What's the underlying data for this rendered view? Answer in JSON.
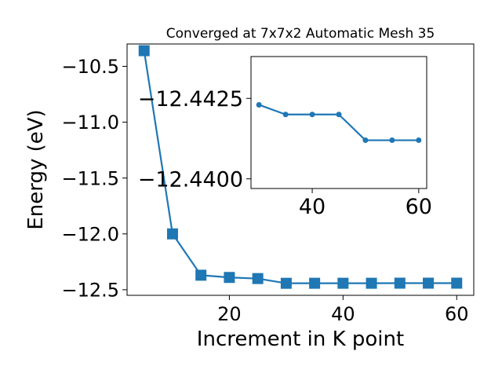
{
  "chart_data": [
    {
      "type": "line",
      "title": "Converged at 7x7x2 Automatic Mesh 35",
      "xlabel": "Increment in K point",
      "ylabel": "Energy (eV)",
      "xlim": [
        2,
        63
      ],
      "ylim": [
        -12.55,
        -10.3
      ],
      "x_ticks": [
        20,
        40,
        60
      ],
      "y_ticks": [
        -10.5,
        -11.0,
        -11.5,
        -12.0,
        -12.5
      ],
      "x_tick_labels": [
        "20",
        "40",
        "60"
      ],
      "y_tick_labels": [
        "−10.5",
        "−11.0",
        "−11.5",
        "−12.0",
        "−12.5"
      ],
      "grid": false,
      "series": [
        {
          "marker": "square",
          "color": "#1f77b4",
          "x": [
            5,
            10,
            15,
            20,
            25,
            30,
            35,
            40,
            45,
            50,
            55,
            60
          ],
          "y": [
            -10.36,
            -12.0,
            -12.37,
            -12.39,
            -12.4,
            -12.4423,
            -12.442,
            -12.442,
            -12.442,
            -12.4412,
            -12.4412,
            -12.4412
          ]
        }
      ]
    },
    {
      "type": "line",
      "title": "",
      "xlabel": "",
      "ylabel": "",
      "xlim": [
        28.5,
        61.5
      ],
      "ylim": [
        -12.4397,
        -12.4438
      ],
      "x_ticks": [
        40,
        60
      ],
      "y_ticks": [
        -12.4425,
        -12.44
      ],
      "x_tick_labels": [
        "40",
        "60"
      ],
      "y_tick_labels": [
        "−12.4425",
        "−12.4400"
      ],
      "grid": false,
      "series": [
        {
          "marker": "circle",
          "color": "#1f77b4",
          "x": [
            30,
            35,
            40,
            45,
            50,
            55,
            60
          ],
          "y": [
            -12.4423,
            -12.442,
            -12.442,
            -12.442,
            -12.4412,
            -12.4412,
            -12.4412
          ]
        }
      ]
    }
  ]
}
